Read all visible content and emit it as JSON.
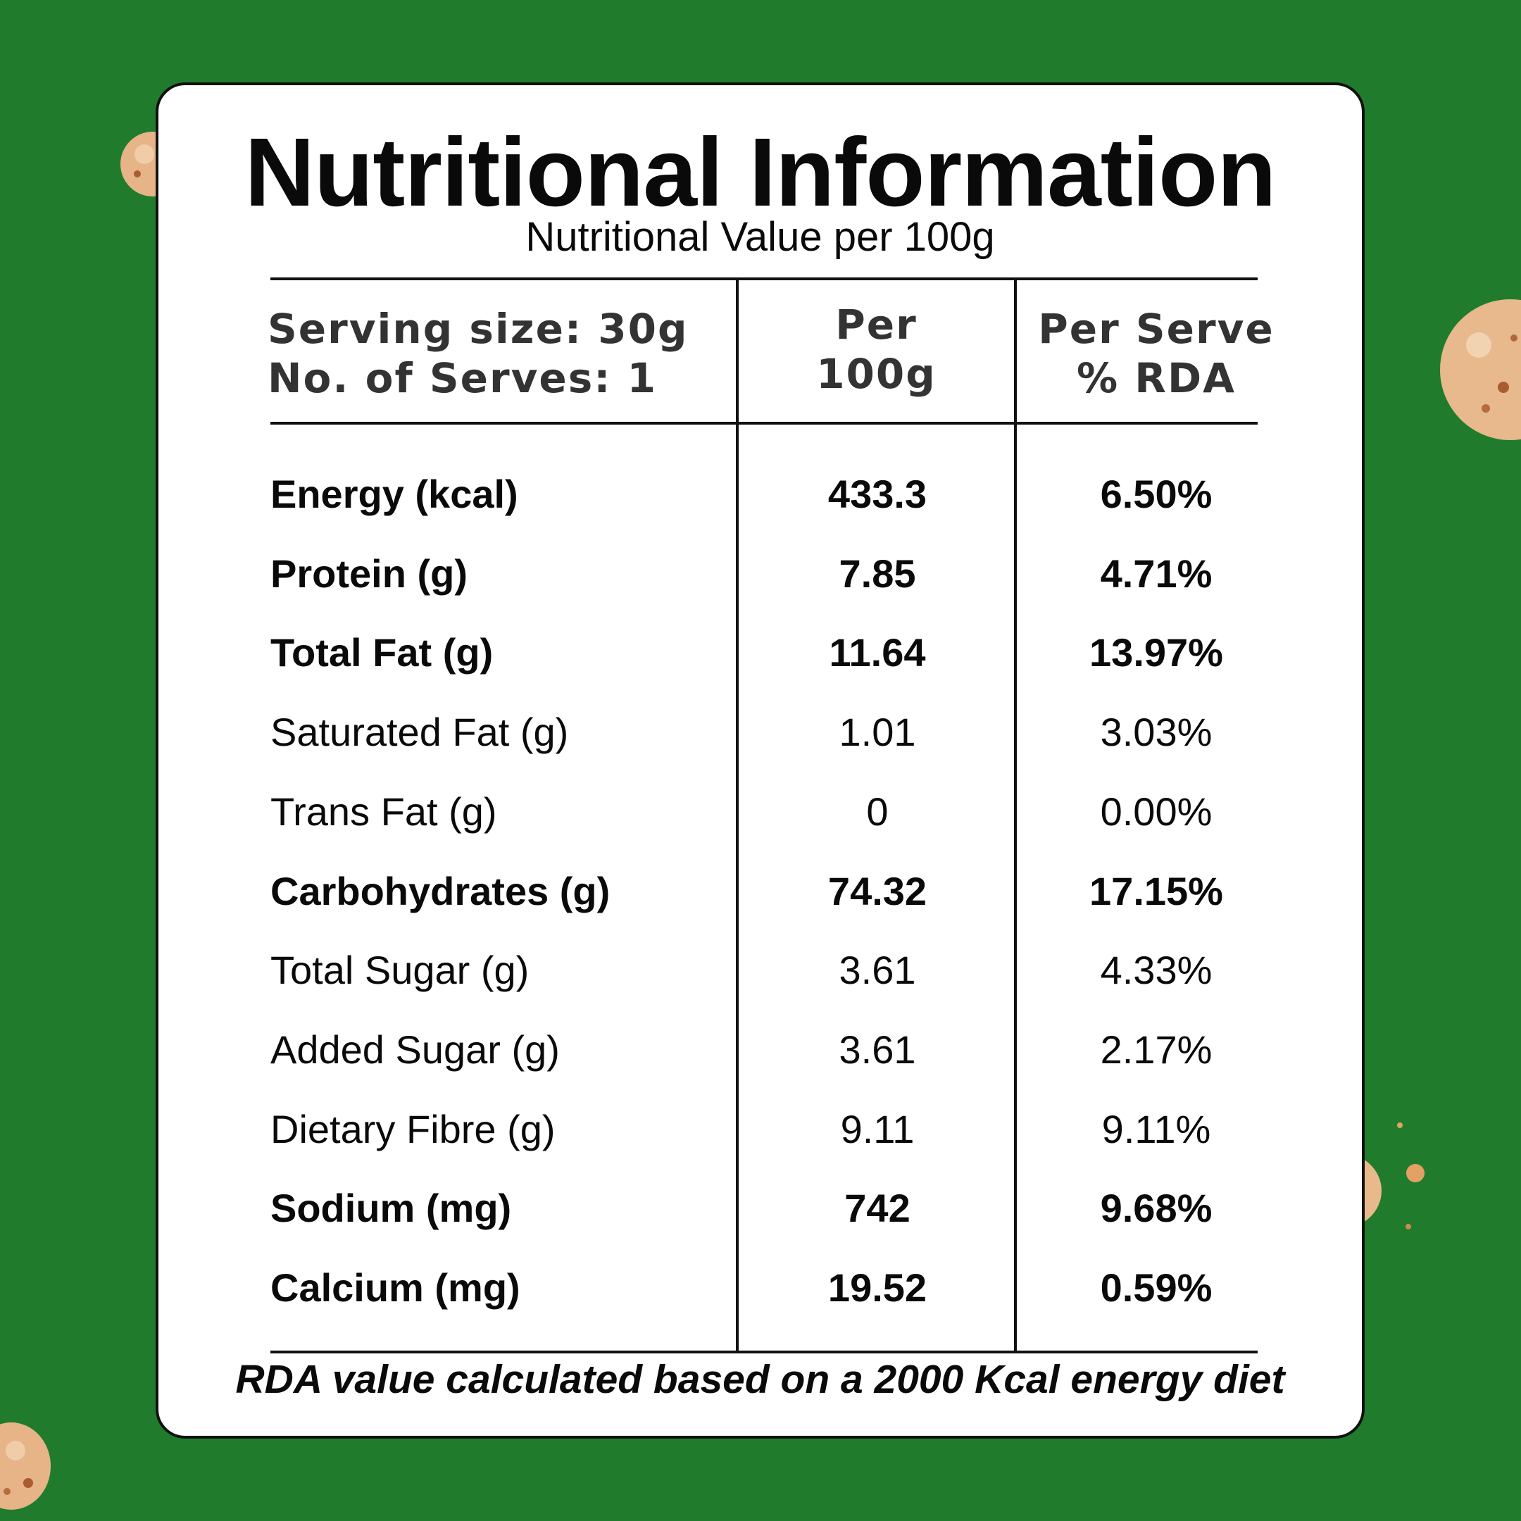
{
  "title": "Nutritional Information",
  "subtitle": "Nutritional Value per 100g",
  "header": {
    "serving_size": "Serving size: 30g",
    "serves": "No. of Serves: 1",
    "col_per100_line1": "Per",
    "col_per100_line2": "100g",
    "col_rda_line1": "Per Serve",
    "col_rda_line2": "% RDA"
  },
  "rows": [
    {
      "name": "Energy (kcal)",
      "per100": "433.3",
      "rda": "6.50%",
      "bold": true
    },
    {
      "name": "Protein (g)",
      "per100": "7.85",
      "rda": "4.71%",
      "bold": true
    },
    {
      "name": "Total Fat (g)",
      "per100": "11.64",
      "rda": "13.97%",
      "bold": true
    },
    {
      "name": "Saturated Fat (g)",
      "per100": "1.01",
      "rda": "3.03%",
      "bold": false
    },
    {
      "name": "Trans Fat (g)",
      "per100": "0",
      "rda": "0.00%",
      "bold": false
    },
    {
      "name": "Carbohydrates (g)",
      "per100": "74.32",
      "rda": "17.15%",
      "bold": true
    },
    {
      "name": "Total Sugar (g)",
      "per100": "3.61",
      "rda": "4.33%",
      "bold": false
    },
    {
      "name": "Added Sugar (g)",
      "per100": "3.61",
      "rda": "2.17%",
      "bold": false
    },
    {
      "name": "Dietary Fibre (g)",
      "per100": "9.11",
      "rda": "9.11%",
      "bold": false
    },
    {
      "name": "Sodium (mg)",
      "per100": "742",
      "rda": "9.68%",
      "bold": true
    },
    {
      "name": "Calcium (mg)",
      "per100": "19.52",
      "rda": "0.59%",
      "bold": true
    }
  ],
  "footnote": "RDA value calculated based on a 2000 Kcal energy diet",
  "colors": {
    "background": "#207c2c",
    "card": "#ffffff",
    "text": "#0a0a0a",
    "snack": "#e8b98a"
  }
}
